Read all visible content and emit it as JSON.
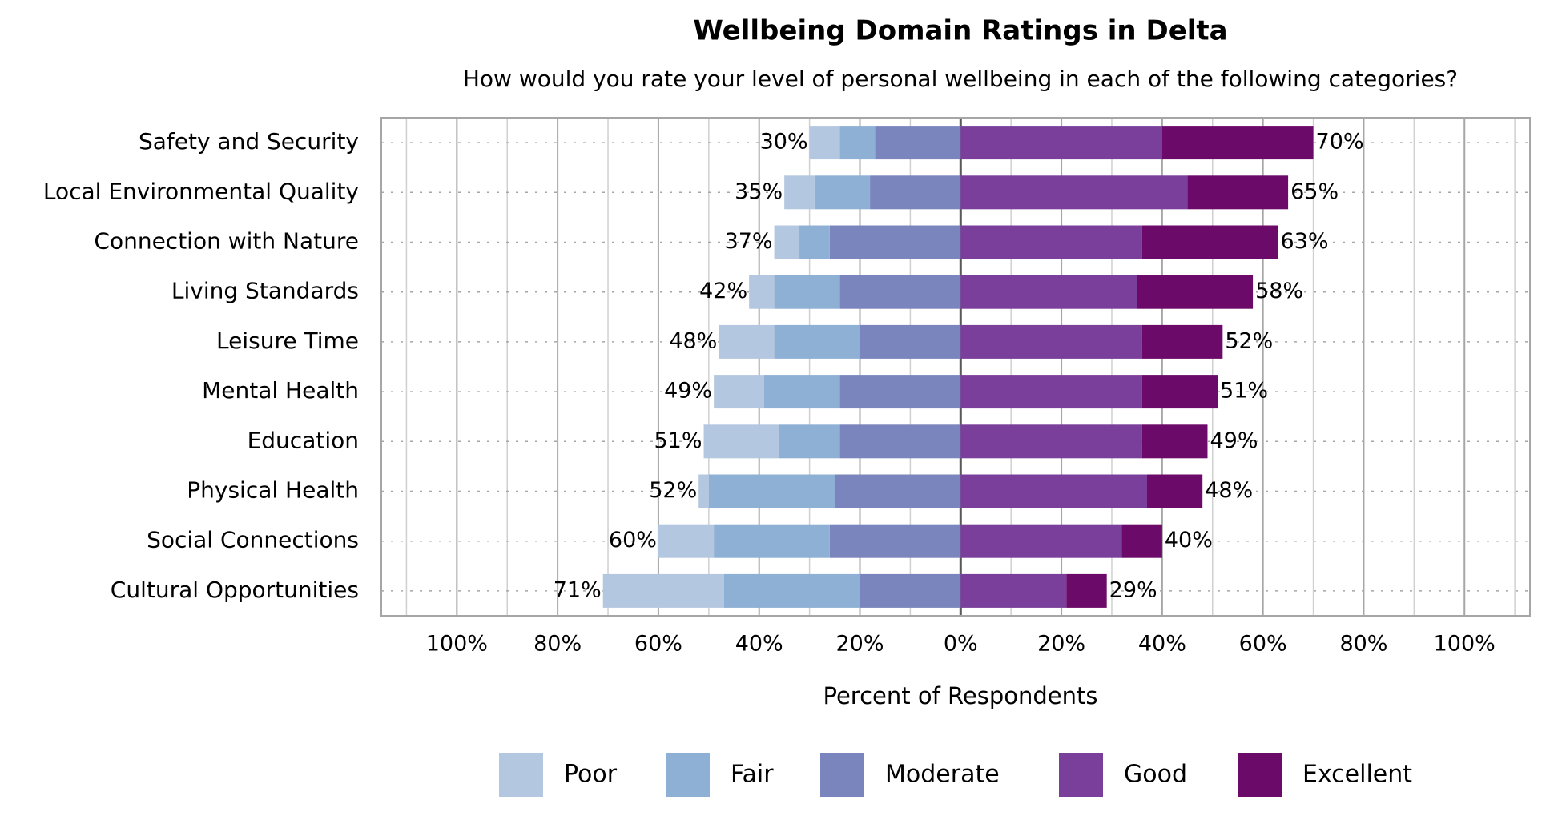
{
  "chart_data": {
    "type": "diverging_bar",
    "title": "Wellbeing Domain Ratings in Delta",
    "subtitle": "How would you rate your level of personal wellbeing in each of the following categories?",
    "x_axis_label": "Percent of Respondents",
    "categories": [
      "Safety and Security",
      "Local Environmental Quality",
      "Connection with Nature",
      "Living Standards",
      "Leisure Time",
      "Mental Health",
      "Education",
      "Physical Health",
      "Social Connections",
      "Cultural Opportunities"
    ],
    "series": [
      {
        "name": "Poor",
        "color": "#b4c7e0",
        "side": "negative",
        "values": [
          6,
          6,
          5,
          5,
          11,
          10,
          15,
          2,
          11,
          24
        ]
      },
      {
        "name": "Fair",
        "color": "#8eb0d4",
        "side": "negative",
        "values": [
          7,
          11,
          6,
          13,
          17,
          15,
          12,
          25,
          23,
          27
        ]
      },
      {
        "name": "Moderate",
        "color": "#7b85bd",
        "side": "negative",
        "values": [
          17,
          18,
          26,
          24,
          20,
          24,
          24,
          25,
          26,
          20
        ]
      },
      {
        "name": "Good",
        "color": "#7a3f9a",
        "side": "positive",
        "values": [
          40,
          45,
          36,
          35,
          36,
          36,
          36,
          37,
          32,
          21
        ]
      },
      {
        "name": "Excellent",
        "color": "#6b0a68",
        "side": "positive",
        "values": [
          30,
          20,
          27,
          23,
          16,
          15,
          13,
          11,
          8,
          8
        ]
      }
    ],
    "negative_total_labels": [
      "30%",
      "35%",
      "37%",
      "42%",
      "48%",
      "49%",
      "51%",
      "52%",
      "60%",
      "71%"
    ],
    "positive_total_labels": [
      "70%",
      "65%",
      "63%",
      "58%",
      "52%",
      "51%",
      "49%",
      "48%",
      "40%",
      "29%"
    ],
    "xlim": [
      -115,
      113
    ],
    "xticks": [
      {
        "value": -100,
        "label": "100%"
      },
      {
        "value": -80,
        "label": "80%"
      },
      {
        "value": -60,
        "label": "60%"
      },
      {
        "value": -40,
        "label": "40%"
      },
      {
        "value": -20,
        "label": "20%"
      },
      {
        "value": 0,
        "label": "0%"
      },
      {
        "value": 20,
        "label": "20%"
      },
      {
        "value": 40,
        "label": "40%"
      },
      {
        "value": 60,
        "label": "60%"
      },
      {
        "value": 80,
        "label": "80%"
      },
      {
        "value": 100,
        "label": "100%"
      }
    ],
    "xticks_minor": [
      -110,
      -90,
      -70,
      -50,
      -30,
      -10,
      10,
      30,
      50,
      70,
      90,
      110
    ],
    "grid": true,
    "legend": "bottom"
  }
}
